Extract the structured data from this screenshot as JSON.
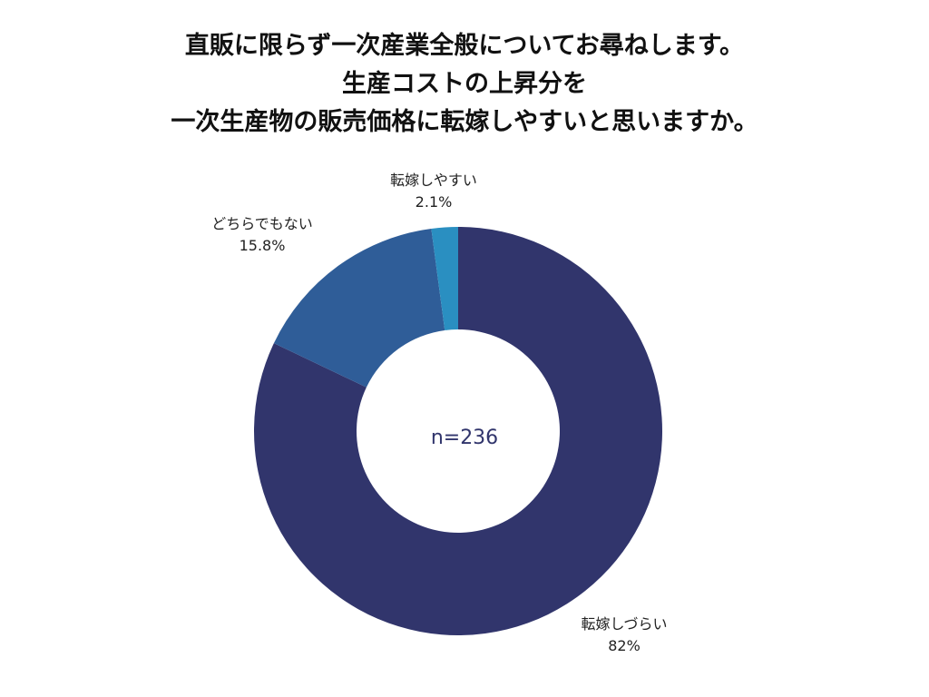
{
  "title_lines": [
    "直販に限らず一次産業全般についてお尋ねします。",
    "生産コストの上昇分を",
    "一次生産物の販売価格に転嫁しやすいと思いますか。"
  ],
  "chart_data": {
    "type": "pie",
    "donut": true,
    "center_text": "n=236",
    "slices": [
      {
        "label": "転嫁しづらい",
        "value": 82,
        "display": "82%",
        "color": "#31356c"
      },
      {
        "label": "どちらでもない",
        "value": 15.8,
        "display": "15.8%",
        "color": "#2f5d98"
      },
      {
        "label": "転嫁しやすい",
        "value": 2.1,
        "display": "2.1%",
        "color": "#2a8fc1"
      }
    ],
    "start_angle": "12 o'clock",
    "direction": "clockwise",
    "legend": "none",
    "center_text_color": "#31356c"
  }
}
